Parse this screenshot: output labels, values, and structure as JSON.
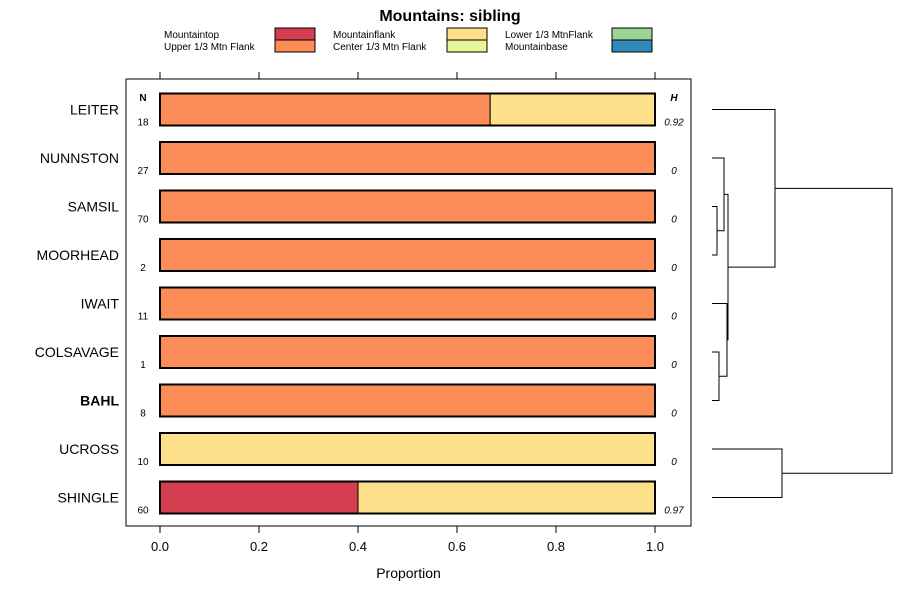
{
  "chart_data": {
    "type": "bar",
    "orientation": "horizontal",
    "stacked": true,
    "title": "Mountains: sibling",
    "xlabel": "Proportion",
    "ylabel": "",
    "xlim": [
      0,
      1
    ],
    "xticks": [
      "0.0",
      "0.2",
      "0.4",
      "0.6",
      "0.8",
      "1.0"
    ],
    "n_header": "N",
    "h_header": "H",
    "legend": [
      {
        "name": "Mountaintop",
        "color": "#d53e4f"
      },
      {
        "name": "Upper 1/3 Mtn Flank",
        "color": "#fc8d59"
      },
      {
        "name": "Mountainflank",
        "color": "#fee08b"
      },
      {
        "name": "Center 1/3 Mtn Flank",
        "color": "#e6f598"
      },
      {
        "name": "Lower 1/3 MtnFlank",
        "color": "#99d594"
      },
      {
        "name": "Mountainbase",
        "color": "#3288bd"
      }
    ],
    "rows": [
      {
        "label": "LEITER",
        "bold": false,
        "n": "18",
        "h": "0.92",
        "segments": [
          {
            "series": "Upper 1/3 Mtn Flank",
            "value": 0.667
          },
          {
            "series": "Mountainflank",
            "value": 0.333
          }
        ]
      },
      {
        "label": "NUNNSTON",
        "bold": false,
        "n": "27",
        "h": "0",
        "segments": [
          {
            "series": "Upper 1/3 Mtn Flank",
            "value": 1.0
          }
        ]
      },
      {
        "label": "SAMSIL",
        "bold": false,
        "n": "70",
        "h": "0",
        "segments": [
          {
            "series": "Upper 1/3 Mtn Flank",
            "value": 1.0
          }
        ]
      },
      {
        "label": "MOORHEAD",
        "bold": false,
        "n": "2",
        "h": "0",
        "segments": [
          {
            "series": "Upper 1/3 Mtn Flank",
            "value": 1.0
          }
        ]
      },
      {
        "label": "IWAIT",
        "bold": false,
        "n": "11",
        "h": "0",
        "segments": [
          {
            "series": "Upper 1/3 Mtn Flank",
            "value": 1.0
          }
        ]
      },
      {
        "label": "COLSAVAGE",
        "bold": false,
        "n": "1",
        "h": "0",
        "segments": [
          {
            "series": "Upper 1/3 Mtn Flank",
            "value": 1.0
          }
        ]
      },
      {
        "label": "BAHL",
        "bold": true,
        "n": "8",
        "h": "0",
        "segments": [
          {
            "series": "Upper 1/3 Mtn Flank",
            "value": 1.0
          }
        ]
      },
      {
        "label": "UCROSS",
        "bold": false,
        "n": "10",
        "h": "0",
        "segments": [
          {
            "series": "Mountainflank",
            "value": 1.0
          }
        ]
      },
      {
        "label": "SHINGLE",
        "bold": false,
        "n": "60",
        "h": "0.97",
        "segments": [
          {
            "series": "Mountaintop",
            "value": 0.4
          },
          {
            "series": "Mountainflank",
            "value": 0.6
          }
        ]
      }
    ]
  }
}
